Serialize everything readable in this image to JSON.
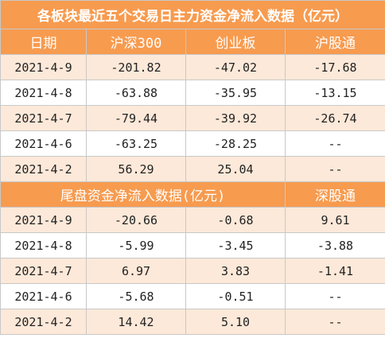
{
  "title": "各板块最近五个交易日主力资金净流入数据（亿元）",
  "header": [
    "日期",
    "沪深300",
    "创业板",
    "沪股通"
  ],
  "rows": [
    [
      "2021-4-9",
      "-201.82",
      "-47.02",
      "-17.68"
    ],
    [
      "2021-4-8",
      "-63.88",
      "-35.95",
      "-13.15"
    ],
    [
      "2021-4-7",
      "-79.44",
      "-39.92",
      "-26.74"
    ],
    [
      "2021-4-6",
      "-63.25",
      "-28.25",
      "--"
    ],
    [
      "2021-4-2",
      "56.29",
      "25.04",
      "--"
    ]
  ],
  "section2": {
    "title": "尾盘资金净流入数据(亿元)",
    "column": "深股通",
    "rows": [
      [
        "2021-4-9",
        "-20.66",
        "-0.68",
        "9.61"
      ],
      [
        "2021-4-8",
        "-5.99",
        "-3.45",
        "-3.88"
      ],
      [
        "2021-4-7",
        "6.97",
        "3.83",
        "-1.41"
      ],
      [
        "2021-4-6",
        "-5.68",
        "-0.51",
        "--"
      ],
      [
        "2021-4-2",
        "14.42",
        "5.10",
        "--"
      ]
    ]
  }
}
